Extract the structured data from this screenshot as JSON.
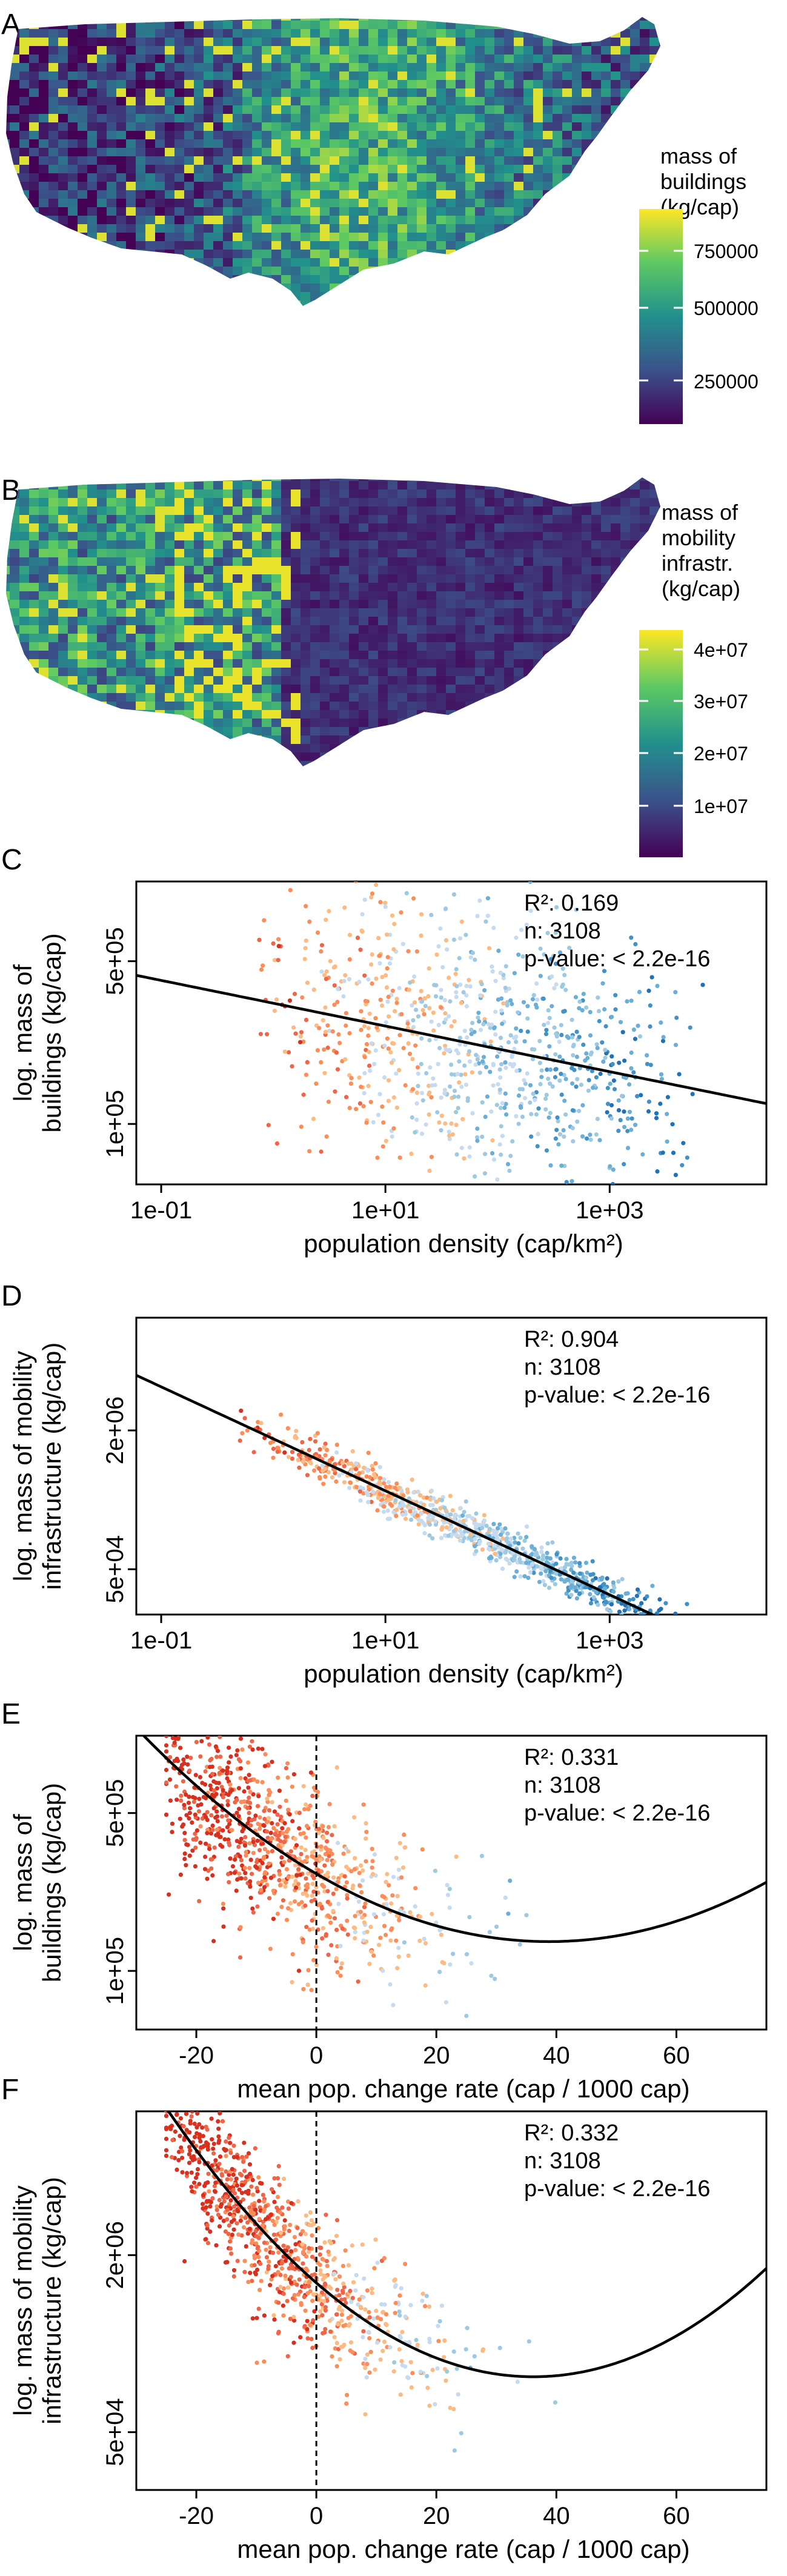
{
  "map_panels": [
    {
      "letter": "A",
      "legend_lines": [
        "mass of",
        "buildings",
        "(kg/cap)"
      ],
      "legend_ticks": [
        "250000",
        "500000",
        "750000"
      ],
      "colorbar_range": [
        150000,
        850000
      ],
      "colors": {
        "low": "#440154",
        "mid": "#21908c",
        "high": "#fde725"
      }
    },
    {
      "letter": "B",
      "legend_lines": [
        "mass of",
        "mobility",
        "infrastr.",
        "(kg/cap)"
      ],
      "legend_ticks": [
        "1e+07",
        "2e+07",
        "3e+07",
        "4e+07"
      ],
      "colorbar_range": [
        0,
        42000000
      ],
      "colors": {
        "low": "#440154",
        "mid": "#21908c",
        "high": "#fde725"
      }
    }
  ],
  "chart_data": [
    {
      "type": "scatter",
      "letter": "C",
      "xlabel": "population density (cap/km²)",
      "ylabel_lines": [
        "log. mass of",
        "buildings (kg/cap)"
      ],
      "x_scale": "log",
      "y_scale": "log",
      "xlim": [
        0.06,
        25000
      ],
      "ylim": [
        55000,
        1100000
      ],
      "x_ticks": [
        "1e-01",
        "1e+01",
        "1e+03"
      ],
      "y_ticks": [
        "1e+05",
        "5e+05"
      ],
      "stats": [
        "R²: 0.169",
        "n: 3108",
        "p-value: < 2.2e-16"
      ],
      "fit": {
        "kind": "power",
        "a": 330000,
        "b": -0.098
      },
      "point_cloud": {
        "n": 900,
        "x_range": [
          0.08,
          15000
        ],
        "y_center": 300000,
        "y_spread": 0.85
      },
      "colors": [
        "#d7301f",
        "#ef6548",
        "#fc8d59",
        "#fdbb84",
        "#c6dbef",
        "#9ecae1",
        "#6baed6",
        "#4292c6",
        "#2171b5"
      ]
    },
    {
      "type": "scatter",
      "letter": "D",
      "xlabel": "population density (cap/km²)",
      "ylabel_lines": [
        "log. mass of mobility",
        "infrastructure (kg/cap)"
      ],
      "x_scale": "log",
      "y_scale": "log",
      "xlim": [
        0.06,
        25000
      ],
      "ylim": [
        15000,
        40000000
      ],
      "x_ticks": [
        "1e-01",
        "1e+01",
        "1e+03"
      ],
      "y_ticks": [
        "5e+04",
        "2e+06"
      ],
      "stats": [
        "R²: 0.904",
        "n: 3108",
        "p-value: < 2.2e-16"
      ],
      "fit": {
        "kind": "power",
        "a": 1600000,
        "b": -0.6
      },
      "point_cloud": {
        "n": 900,
        "x_range": [
          0.08,
          15000
        ],
        "y_spread": 0.35
      },
      "colors": [
        "#d7301f",
        "#ef6548",
        "#fc8d59",
        "#fdbb84",
        "#c6dbef",
        "#9ecae1",
        "#6baed6",
        "#4292c6",
        "#2171b5"
      ]
    },
    {
      "type": "scatter",
      "letter": "E",
      "xlabel": "mean pop. change rate (cap / 1000 cap)",
      "ylabel_lines": [
        "log. mass of",
        "buildings (kg/cap)"
      ],
      "x_scale": "linear",
      "y_scale": "log",
      "xlim": [
        -30,
        75
      ],
      "ylim": [
        55000,
        1100000
      ],
      "x_ticks": [
        -20,
        0,
        20,
        40,
        60
      ],
      "y_ticks": [
        "1e+05",
        "5e+05"
      ],
      "vline_x": 0,
      "stats": [
        "R²: 0.331",
        "n: 3108",
        "p-value: < 2.2e-16"
      ],
      "fit": {
        "kind": "logquad",
        "c0": 5.43,
        "c1": -0.0155,
        "c2": 0.0002
      },
      "point_cloud": {
        "n": 900,
        "x_range": [
          -25,
          70
        ],
        "y_spread": 0.55
      },
      "colors": [
        "#d7301f",
        "#ef6548",
        "#fc8d59",
        "#fdbb84",
        "#c6dbef",
        "#9ecae1",
        "#6baed6",
        "#4292c6",
        "#2171b5"
      ]
    },
    {
      "type": "scatter",
      "letter": "F",
      "xlabel": "mean pop. change rate (cap / 1000 cap)",
      "ylabel_lines": [
        "log. mass of mobility",
        "infrastructure (kg/cap)"
      ],
      "x_scale": "linear",
      "y_scale": "log",
      "xlim": [
        -30,
        75
      ],
      "ylim": [
        15000,
        40000000
      ],
      "x_ticks": [
        -20,
        0,
        20,
        40,
        60
      ],
      "y_ticks": [
        "5e+04",
        "2e+06"
      ],
      "vline_x": 0,
      "stats": [
        "R²: 0.332",
        "n: 3108",
        "p-value: < 2.2e-16"
      ],
      "fit": {
        "kind": "logquad",
        "c0": 6.05,
        "c1": -0.047,
        "c2": 0.00065
      },
      "point_cloud": {
        "n": 900,
        "x_range": [
          -25,
          70
        ],
        "y_spread": 0.9
      },
      "colors": [
        "#d7301f",
        "#ef6548",
        "#fc8d59",
        "#fdbb84",
        "#c6dbef",
        "#9ecae1",
        "#6baed6",
        "#4292c6",
        "#2171b5"
      ]
    }
  ]
}
